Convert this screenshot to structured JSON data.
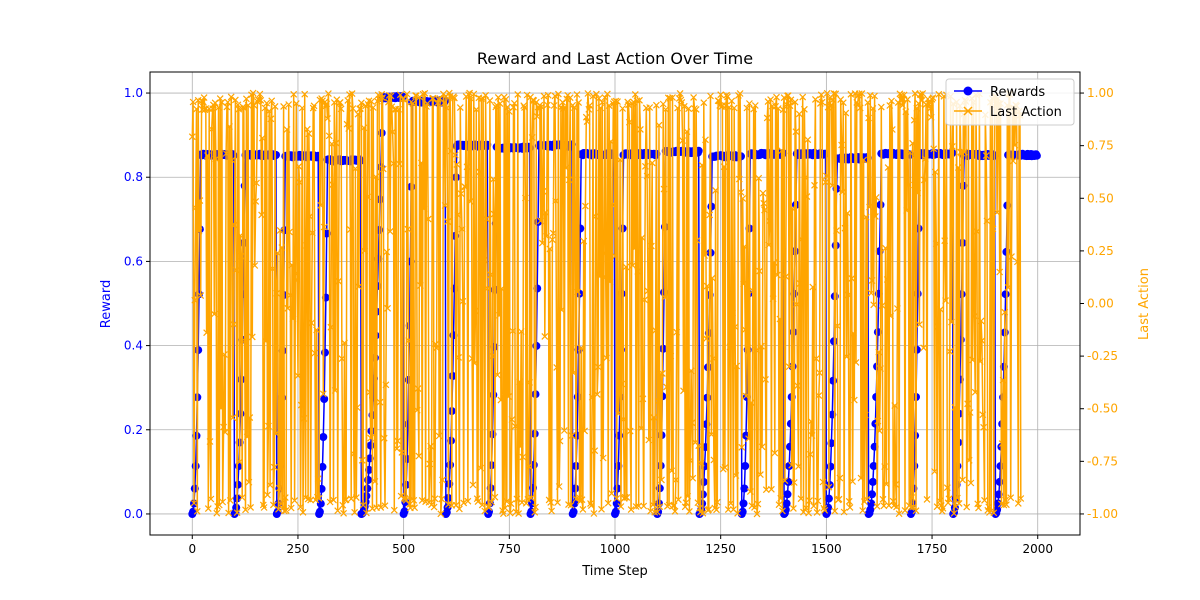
{
  "chart_data": {
    "type": "line",
    "title": "Reward and Last Action Over Time",
    "xlabel": "Time Step",
    "ylabel_left": "Reward",
    "ylabel_right": "Last Action",
    "xlim": [
      -100,
      2100
    ],
    "ylim_left": [
      -0.05,
      1.05
    ],
    "ylim_right": [
      -1.1,
      1.1
    ],
    "x_ticks": [
      0,
      250,
      500,
      750,
      1000,
      1250,
      1500,
      1750,
      2000
    ],
    "y_ticks_left": [
      0.0,
      0.2,
      0.4,
      0.6,
      0.8,
      1.0
    ],
    "y_ticks_right": [
      -1.0,
      -0.75,
      -0.5,
      -0.25,
      0.0,
      0.25,
      0.5,
      0.75,
      1.0
    ],
    "grid": true,
    "legend_position": "top-right",
    "colors": {
      "rewards": "#0000ff",
      "last_action": "#ffa500",
      "axes": "#000000",
      "grid": "#b0b0b0"
    },
    "series": [
      {
        "name": "Rewards",
        "axis": "left",
        "marker": "circle",
        "episode_starts": [
          0,
          100,
          200,
          300,
          400,
          500,
          600,
          700,
          800,
          900,
          1000,
          1100,
          1200,
          1300,
          1400,
          1500,
          1600,
          1700,
          1800,
          1900
        ],
        "episode_end": 2000,
        "plateaus": [
          0.853,
          0.853,
          0.85,
          0.84,
          0.99,
          0.98,
          0.875,
          0.87,
          0.875,
          0.855,
          0.855,
          0.86,
          0.85,
          0.855,
          0.855,
          0.845,
          0.855,
          0.855,
          0.853,
          0.853
        ],
        "rise_steps": [
          20,
          25,
          20,
          20,
          50,
          20,
          25,
          20,
          20,
          20,
          20,
          20,
          30,
          20,
          30,
          25,
          30,
          20,
          25,
          30
        ]
      },
      {
        "name": "Last Action",
        "axis": "right",
        "marker": "x",
        "x_range": [
          0,
          1960
        ],
        "value_range": [
          -1.0,
          1.0
        ]
      }
    ]
  }
}
